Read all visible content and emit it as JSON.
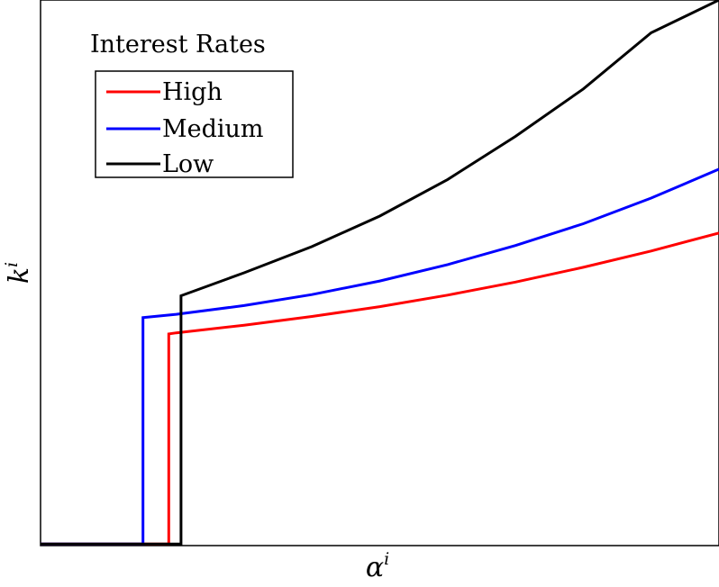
{
  "chart_data": {
    "type": "line",
    "title": "",
    "xlabel": "α",
    "xlabel_superscript": "i",
    "ylabel": "k",
    "ylabel_superscript": "i",
    "xlim": [
      0,
      1
    ],
    "ylim": [
      0,
      1
    ],
    "grid": false,
    "ticks_visible": false,
    "legend": {
      "title": "Interest Rates",
      "placement": "top-left"
    },
    "series": [
      {
        "name": "High",
        "color": "#ff0000",
        "x": [
          0,
          0.189,
          0.189,
          0.2,
          0.3,
          0.4,
          0.5,
          0.6,
          0.7,
          0.8,
          0.9,
          1.0
        ],
        "y": [
          0.003,
          0.003,
          0.388,
          0.39,
          0.404,
          0.42,
          0.438,
          0.459,
          0.483,
          0.51,
          0.54,
          0.573
        ]
      },
      {
        "name": "Medium",
        "color": "#0000ff",
        "x": [
          0,
          0.151,
          0.151,
          0.2,
          0.3,
          0.4,
          0.5,
          0.6,
          0.7,
          0.8,
          0.9,
          1.0
        ],
        "y": [
          0.003,
          0.003,
          0.418,
          0.424,
          0.44,
          0.46,
          0.485,
          0.515,
          0.55,
          0.59,
          0.637,
          0.69
        ]
      },
      {
        "name": "Low",
        "color": "#000000",
        "x": [
          0,
          0.207,
          0.207,
          0.3,
          0.4,
          0.5,
          0.6,
          0.7,
          0.8,
          0.9,
          1.0
        ],
        "y": [
          0.003,
          0.003,
          0.458,
          0.5,
          0.548,
          0.604,
          0.671,
          0.75,
          0.837,
          0.94,
          1.0
        ]
      }
    ]
  }
}
